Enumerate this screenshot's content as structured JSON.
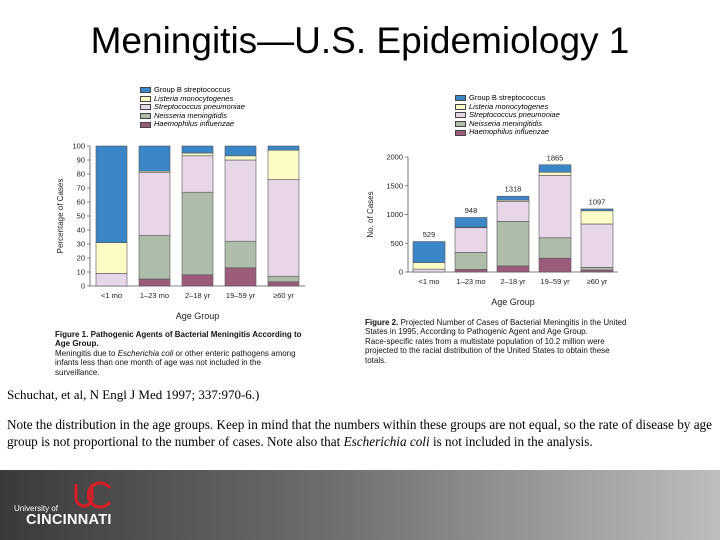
{
  "slide": {
    "title": "Meningitis—U.S. Epidemiology 1",
    "citation": "Schuchat, et al, N Engl J Med 1997; 337:970-6.)",
    "note_before": "Note the distribution in the age groups.  Keep in mind that the numbers within these groups are not equal, so the rate of disease by age group is not proportional to the number of cases.  Note also that ",
    "note_italic": "Escherichia coli",
    "note_after": " is not included in the analysis.",
    "logo": {
      "small": "University of",
      "big": "CINCINNATI"
    }
  },
  "colors": {
    "Group B streptococcus": "#3b86c6",
    "Listeria monocytogenes": "#fdfbc6",
    "Streptococcus pneumoniae": "#e6d6e8",
    "Neisseria meningitidis": "#aebcaa",
    "Haemophilus influenzae": "#9b5b7b"
  },
  "figure1": {
    "legend": [
      "Group B streptococcus",
      "Listeria monocytogenes",
      "Streptococcus pneumoniae",
      "Neisseria meningitidis",
      "Haemophilus influenzae"
    ],
    "caption_title": "Figure 1.",
    "caption_text": " Pathogenic Agents of Bacterial Meningitis According to Age Group.",
    "caption_note_a": "Meningitis due to ",
    "caption_note_italic": "Escherichia coli",
    "caption_note_b": " or other enteric pathogens among infants less than one month of age was not included in the surveillance."
  },
  "figure2": {
    "legend": [
      "Group B streptococcus",
      "Listeria monocytogenes",
      "Streptococcus pneumoniae",
      "Neisseria meningitidis",
      "Haemophilus influenzae"
    ],
    "caption_title": "Figure 2.",
    "caption_text": " Projected Number of Cases of Bacterial Meningitis in the United States in 1995, According to Pathogenic Agent and Age Group.",
    "caption_note": "Race-specific rates from a multistate population of 10.2 million were projected to the racial distribution of the United States to obtain these totals."
  },
  "chart_data": [
    {
      "type": "bar",
      "stacked": true,
      "xlabel": "Age Group",
      "ylabel": "Percentage of Cases",
      "ylim": [
        0,
        100
      ],
      "yticks": [
        0,
        10,
        20,
        30,
        40,
        50,
        60,
        70,
        80,
        90,
        100
      ],
      "categories": [
        "<1 mo",
        "1–23 mo",
        "2–18 yr",
        "19–59 yr",
        "≥60 yr"
      ],
      "series": [
        {
          "name": "Haemophilus influenzae",
          "values": [
            0,
            5,
            8,
            13,
            3
          ]
        },
        {
          "name": "Neisseria meningitidis",
          "values": [
            0,
            31,
            59,
            19,
            4
          ]
        },
        {
          "name": "Streptococcus pneumoniae",
          "values": [
            9,
            45,
            26,
            58,
            69
          ]
        },
        {
          "name": "Listeria monocytogenes",
          "values": [
            22,
            1,
            2,
            3,
            21
          ]
        },
        {
          "name": "Group B streptococcus",
          "values": [
            69,
            18,
            5,
            7,
            3
          ]
        }
      ]
    },
    {
      "type": "bar",
      "stacked": true,
      "xlabel": "Age Group",
      "ylabel": "No. of Cases",
      "ylim": [
        0,
        2000
      ],
      "yticks": [
        0,
        500,
        1000,
        1500,
        2000
      ],
      "categories": [
        "<1 mo",
        "1–23 mo",
        "2–18 yr",
        "19–59 yr",
        "≥60 yr"
      ],
      "totals": [
        529,
        948,
        1318,
        1865,
        1097
      ],
      "series": [
        {
          "name": "Haemophilus influenzae",
          "values": [
            0,
            45,
            105,
            240,
            35
          ]
        },
        {
          "name": "Neisseria meningitidis",
          "values": [
            0,
            295,
            775,
            355,
            45
          ]
        },
        {
          "name": "Streptococcus pneumoniae",
          "values": [
            50,
            430,
            345,
            1085,
            755
          ]
        },
        {
          "name": "Listeria monocytogenes",
          "values": [
            115,
            10,
            25,
            55,
            230
          ]
        },
        {
          "name": "Group B streptococcus",
          "values": [
            364,
            168,
            68,
            130,
            32
          ]
        }
      ]
    }
  ]
}
